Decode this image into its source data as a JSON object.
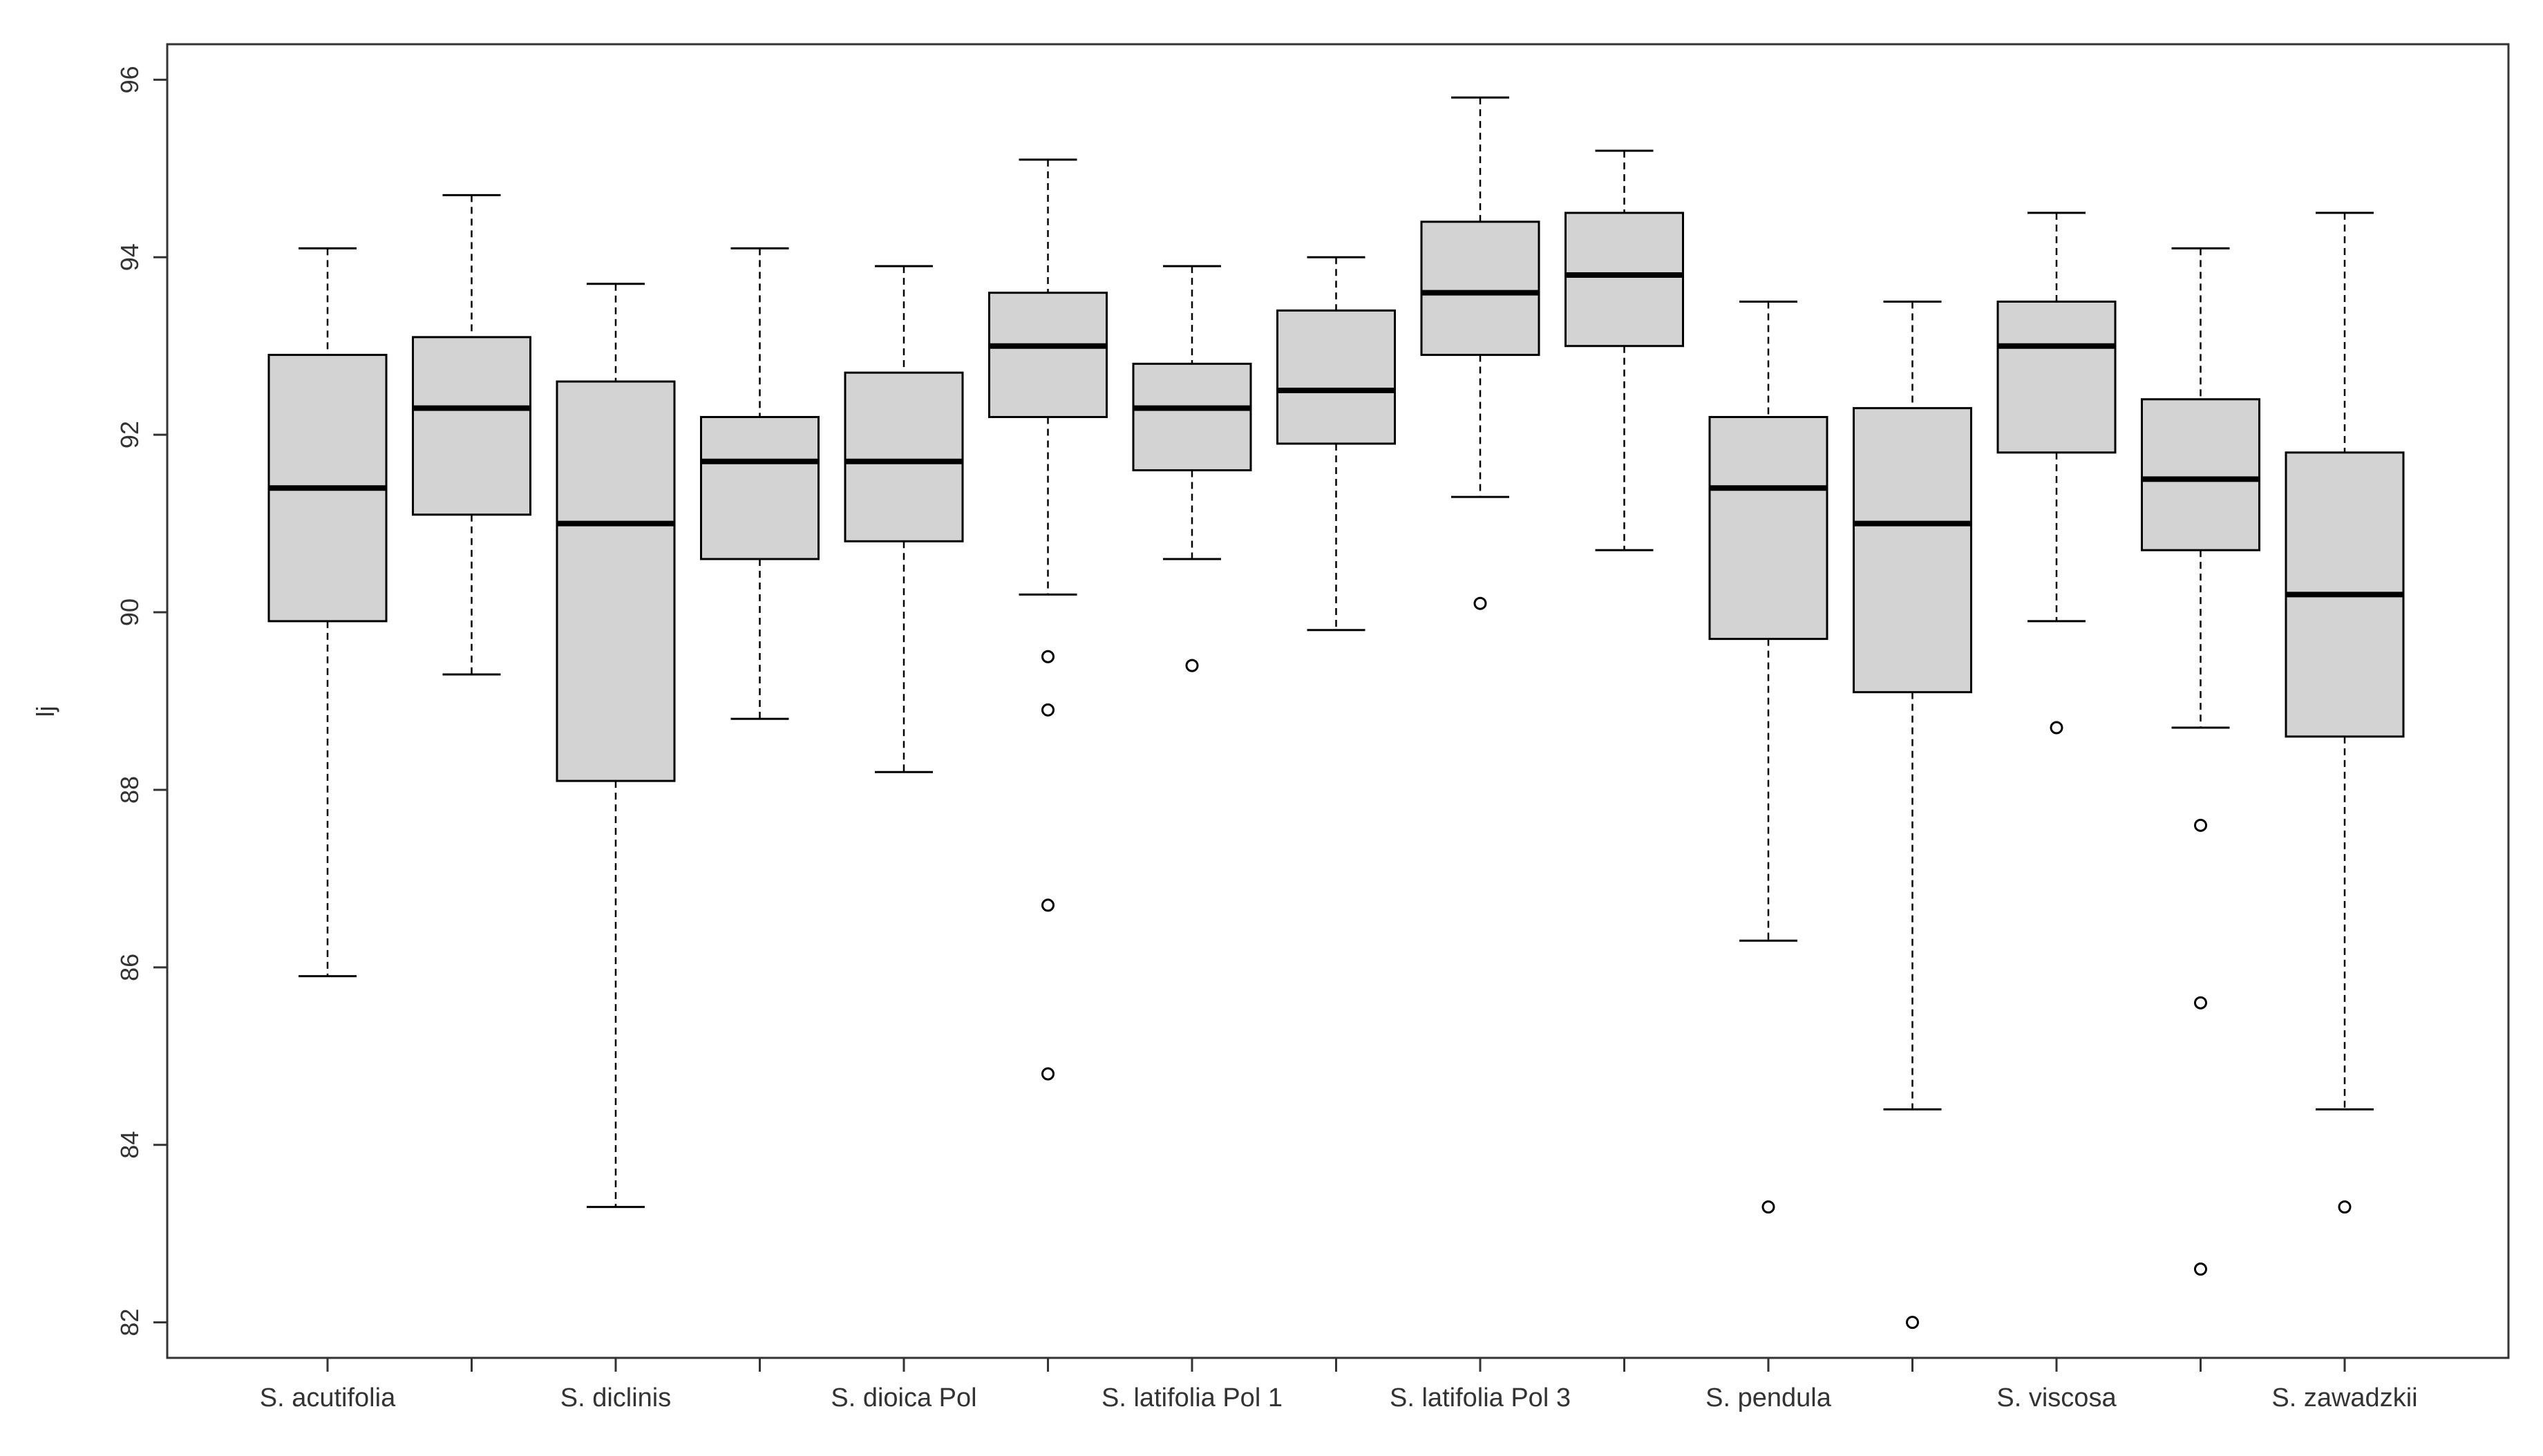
{
  "chart_data": {
    "type": "boxplot",
    "title": "",
    "xlabel": "",
    "ylabel": "lj",
    "ylim": [
      81.6,
      96.4
    ],
    "yticks": [
      82,
      84,
      86,
      88,
      90,
      92,
      94,
      96
    ],
    "ytick_labels": [
      "82",
      "84",
      "86",
      "88",
      "90",
      "92",
      "94",
      "96"
    ],
    "box_fill": "#d3d3d3",
    "line_color": "#000000",
    "categories": [
      "S. acutifolia",
      "",
      "S. diclinis",
      "",
      "S. dioica Pol",
      "",
      "S. latifolia Pol 1",
      "",
      "S. latifolia Pol 3",
      "",
      "S. pendula",
      "",
      "S. viscosa",
      "",
      "S. zawadzkii"
    ],
    "boxes": [
      {
        "whisker_low": 85.9,
        "q1": 89.9,
        "median": 91.4,
        "q3": 92.9,
        "whisker_high": 94.1,
        "outliers": []
      },
      {
        "whisker_low": 89.3,
        "q1": 91.1,
        "median": 92.3,
        "q3": 93.1,
        "whisker_high": 94.7,
        "outliers": []
      },
      {
        "whisker_low": 83.3,
        "q1": 88.1,
        "median": 91.0,
        "q3": 92.6,
        "whisker_high": 93.7,
        "outliers": []
      },
      {
        "whisker_low": 88.8,
        "q1": 90.6,
        "median": 91.7,
        "q3": 92.2,
        "whisker_high": 94.1,
        "outliers": []
      },
      {
        "whisker_low": 88.2,
        "q1": 90.8,
        "median": 91.7,
        "q3": 92.7,
        "whisker_high": 93.9,
        "outliers": []
      },
      {
        "whisker_low": 90.2,
        "q1": 92.2,
        "median": 93.0,
        "q3": 93.6,
        "whisker_high": 95.1,
        "outliers": [
          89.5,
          88.9,
          86.7,
          84.8
        ]
      },
      {
        "whisker_low": 90.6,
        "q1": 91.6,
        "median": 92.3,
        "q3": 92.8,
        "whisker_high": 93.9,
        "outliers": [
          89.4
        ]
      },
      {
        "whisker_low": 89.8,
        "q1": 91.9,
        "median": 92.5,
        "q3": 93.4,
        "whisker_high": 94.0,
        "outliers": []
      },
      {
        "whisker_low": 91.3,
        "q1": 92.9,
        "median": 93.6,
        "q3": 94.4,
        "whisker_high": 95.8,
        "outliers": [
          90.1
        ]
      },
      {
        "whisker_low": 90.7,
        "q1": 93.0,
        "median": 93.8,
        "q3": 94.5,
        "whisker_high": 95.2,
        "outliers": []
      },
      {
        "whisker_low": 86.3,
        "q1": 89.7,
        "median": 91.4,
        "q3": 92.2,
        "whisker_high": 93.5,
        "outliers": [
          83.3
        ]
      },
      {
        "whisker_low": 84.4,
        "q1": 89.1,
        "median": 91.0,
        "q3": 92.3,
        "whisker_high": 93.5,
        "outliers": [
          82.0
        ]
      },
      {
        "whisker_low": 89.9,
        "q1": 91.8,
        "median": 93.0,
        "q3": 93.5,
        "whisker_high": 94.5,
        "outliers": [
          88.7
        ]
      },
      {
        "whisker_low": 88.7,
        "q1": 90.7,
        "median": 91.5,
        "q3": 92.4,
        "whisker_high": 94.1,
        "outliers": [
          87.6,
          85.6,
          82.6
        ]
      },
      {
        "whisker_low": 84.4,
        "q1": 88.6,
        "median": 90.2,
        "q3": 91.8,
        "whisker_high": 94.5,
        "outliers": [
          83.3
        ]
      }
    ]
  }
}
